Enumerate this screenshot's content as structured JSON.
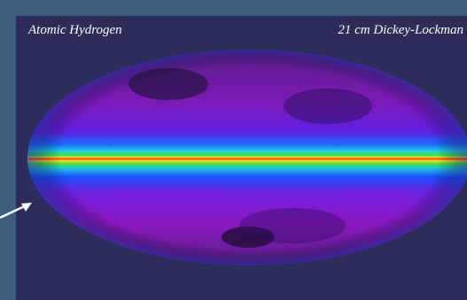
{
  "labels": {
    "left": "Atomic Hydrogen",
    "right": "21 cm Dickey-Lockman"
  }
}
